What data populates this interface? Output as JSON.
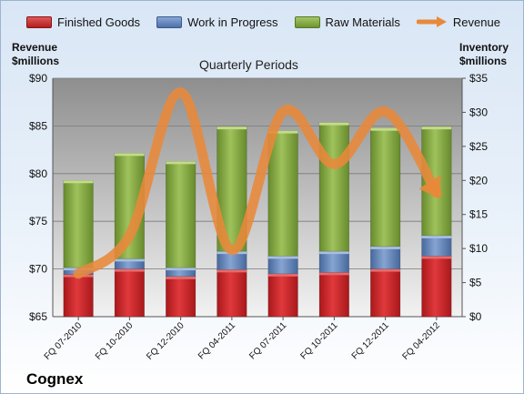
{
  "legend": {
    "items": [
      {
        "label": "Finished Goods",
        "color": "#c0282a"
      },
      {
        "label": "Work in Progress",
        "color": "#5b7fb6"
      },
      {
        "label": "Raw Materials",
        "color": "#7fa43a"
      },
      {
        "label": "Revenue",
        "color": "#e8893a"
      }
    ]
  },
  "left_axis_title": [
    "Revenue",
    "$millions"
  ],
  "right_axis_title": [
    "Inventory",
    "$millions"
  ],
  "subtitle": "Quarterly Periods",
  "company": "Cognex",
  "chart_data": {
    "type": "bar",
    "stacked": true,
    "categories": [
      "FQ 07-2010",
      "FQ 10-2010",
      "FQ 12-2010",
      "FQ 04-2011",
      "FQ 07-2011",
      "FQ 10-2011",
      "FQ 12-2011",
      "FQ 04-2012"
    ],
    "series": [
      {
        "name": "Finished Goods",
        "axis": "right",
        "color": "#c0282a",
        "values": [
          6.2,
          7.0,
          5.9,
          6.9,
          6.3,
          6.5,
          7.0,
          8.9
        ]
      },
      {
        "name": "Work in Progress",
        "axis": "right",
        "color": "#5b7fb6",
        "values": [
          1.0,
          1.5,
          1.3,
          2.7,
          2.6,
          3.1,
          3.3,
          3.0
        ]
      },
      {
        "name": "Raw Materials",
        "axis": "right",
        "color": "#7fa43a",
        "values": [
          12.8,
          15.5,
          15.6,
          18.3,
          18.4,
          18.9,
          17.4,
          16.0
        ]
      },
      {
        "name": "Revenue",
        "axis": "left",
        "type": "line",
        "color": "#e8893a",
        "values": [
          69.5,
          73.5,
          88.5,
          72.0,
          86.5,
          81.0,
          86.5,
          78.0
        ]
      }
    ],
    "left_axis": {
      "ylim": [
        65,
        90
      ],
      "ticks": [
        "$65",
        "$70",
        "$75",
        "$80",
        "$85",
        "$90"
      ]
    },
    "right_axis": {
      "ylim": [
        0,
        35
      ],
      "ticks": [
        "$0",
        "$5",
        "$10",
        "$15",
        "$20",
        "$25",
        "$30",
        "$35"
      ]
    },
    "grid": true
  }
}
